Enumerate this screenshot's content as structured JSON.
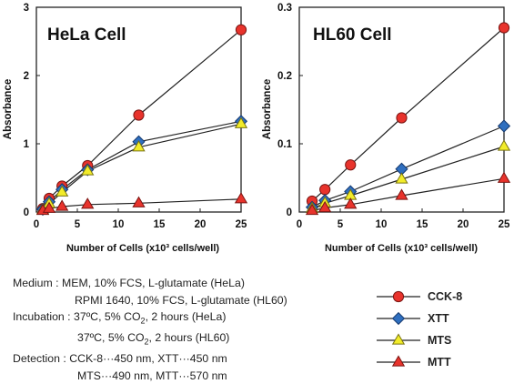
{
  "chart_data": [
    {
      "type": "line",
      "title": "HeLa Cell",
      "xlabel": "Number of Cells (x10³ cells/well)",
      "ylabel": "Absorbance",
      "xlim": [
        0,
        25
      ],
      "ylim": [
        0,
        3
      ],
      "x_ticks": [
        "0",
        "5",
        "10",
        "15",
        "20",
        "25"
      ],
      "y_ticks": [
        "0",
        "1",
        "2",
        "3"
      ],
      "grid": false,
      "x": [
        0.78,
        1.56,
        3.13,
        6.25,
        12.5,
        25
      ],
      "series": [
        {
          "name": "CCK-8",
          "values": [
            0.05,
            0.2,
            0.38,
            0.68,
            1.42,
            2.67
          ]
        },
        {
          "name": "XTT",
          "values": [
            0.04,
            0.15,
            0.33,
            0.62,
            1.03,
            1.33
          ]
        },
        {
          "name": "MTS",
          "values": [
            0.03,
            0.12,
            0.29,
            0.6,
            0.95,
            1.29
          ]
        },
        {
          "name": "MTT",
          "values": [
            0.02,
            0.05,
            0.08,
            0.11,
            0.13,
            0.19
          ]
        }
      ]
    },
    {
      "type": "line",
      "title": "HL60 Cell",
      "xlabel": "Number of Cells (x10³ cells/well)",
      "ylabel": "Absorbance",
      "xlim": [
        0,
        25
      ],
      "ylim": [
        0,
        0.3
      ],
      "x_ticks": [
        "0",
        "5",
        "10",
        "15",
        "20",
        "25"
      ],
      "y_ticks": [
        "0",
        "0.1",
        "0.2",
        "0.3"
      ],
      "grid": false,
      "x": [
        1.56,
        3.13,
        6.25,
        12.5,
        25
      ],
      "series": [
        {
          "name": "CCK-8",
          "values": [
            0.016,
            0.033,
            0.069,
            0.138,
            0.27
          ]
        },
        {
          "name": "XTT",
          "values": [
            0.007,
            0.017,
            0.03,
            0.063,
            0.126
          ]
        },
        {
          "name": "MTS",
          "values": [
            0.005,
            0.013,
            0.024,
            0.048,
            0.096
          ]
        },
        {
          "name": "MTT",
          "values": [
            0.002,
            0.006,
            0.011,
            0.024,
            0.049
          ]
        }
      ]
    }
  ],
  "series_styles": [
    {
      "name": "CCK-8",
      "marker": "circle",
      "color": "#e8332c",
      "stroke": "#7a1512"
    },
    {
      "name": "XTT",
      "marker": "diamond",
      "color": "#2f6fbf",
      "stroke": "#163a70"
    },
    {
      "name": "MTS",
      "marker": "triangle-up",
      "color": "#f2ec2a",
      "stroke": "#7a7410"
    },
    {
      "name": "MTT",
      "marker": "triangle-up",
      "color": "#e8332c",
      "stroke": "#7a1512"
    }
  ],
  "legend": {
    "placement": "bottom-right",
    "items": [
      "CCK-8",
      "XTT",
      "MTS",
      "MTT"
    ]
  },
  "notes": {
    "medium_label": "Medium :",
    "medium_1": "MEM, 10% FCS, L-glutamate (HeLa)",
    "medium_2": "RPMI 1640, 10% FCS, L-glutamate (HL60)",
    "incubation_label": "Incubation :",
    "incubation_1a": "37ºC, 5% CO",
    "incubation_1b": ", 2 hours (HeLa)",
    "incubation_2a": "37ºC, 5% CO",
    "incubation_2b": ", 2 hours (HL60)",
    "co2_sub": "2",
    "detection_label": "Detection :",
    "detection_1": "CCK-8···450 nm, XTT···450 nm",
    "detection_2": "MTS···490 nm, MTT···570 nm"
  }
}
